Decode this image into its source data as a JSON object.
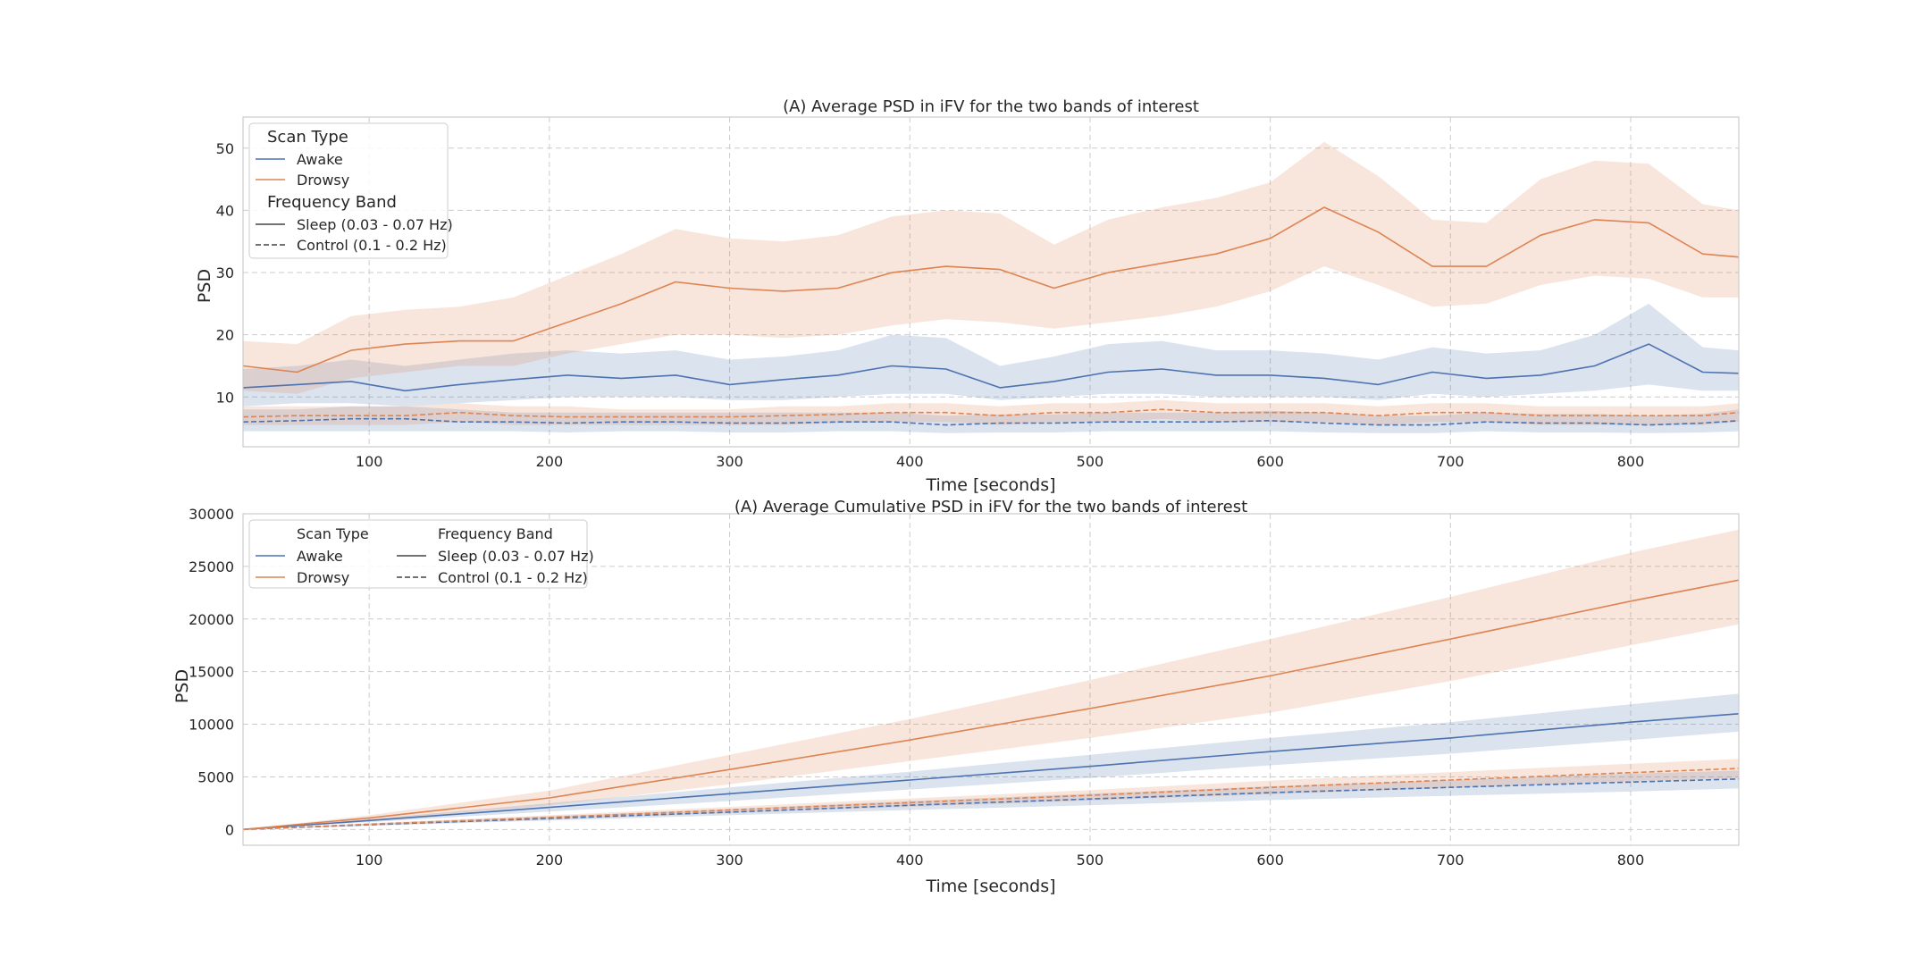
{
  "colors": {
    "awake": "#4c72b0",
    "drowsy": "#dd8452",
    "grid": "#cccccc",
    "frame": "#cccccc",
    "text": "#262626"
  },
  "chart_data": [
    {
      "type": "line",
      "title": "(A) Average PSD in iFV for the two bands of interest",
      "xlabel": "Time [seconds]",
      "ylabel": "PSD",
      "xlim": [
        30,
        860
      ],
      "ylim": [
        2,
        55
      ],
      "xticks": [
        100,
        200,
        300,
        400,
        500,
        600,
        700,
        800
      ],
      "yticks": [
        10,
        20,
        30,
        40,
        50
      ],
      "grid": true,
      "legend_placement": "top-left",
      "legend_layout": "stacked",
      "legend": {
        "scan_title": "Scan Type",
        "scan_items": [
          "Awake",
          "Drowsy"
        ],
        "band_title": "Frequency Band",
        "band_items": [
          "Sleep (0.03 - 0.07 Hz)",
          "Control (0.1 - 0.2 Hz)"
        ]
      },
      "x": [
        30,
        60,
        90,
        120,
        150,
        180,
        210,
        240,
        270,
        300,
        330,
        360,
        390,
        420,
        450,
        480,
        510,
        540,
        570,
        600,
        630,
        660,
        690,
        720,
        750,
        780,
        810,
        840,
        860
      ],
      "series": [
        {
          "name": "Awake",
          "band": "Sleep (0.03 - 0.07 Hz)",
          "style": "solid",
          "values": [
            11.5,
            12.0,
            12.5,
            11.0,
            12.0,
            12.8,
            13.5,
            13.0,
            13.5,
            12.0,
            12.8,
            13.5,
            15.0,
            14.5,
            11.5,
            12.5,
            14.0,
            14.5,
            13.5,
            13.5,
            13.0,
            12.0,
            14.0,
            13.0,
            13.5,
            15.0,
            18.5,
            14.0,
            13.8
          ],
          "lower": [
            8.5,
            9.0,
            9.0,
            8.5,
            9.0,
            9.5,
            10.0,
            10.0,
            10.0,
            9.5,
            9.5,
            10.0,
            10.5,
            10.5,
            9.5,
            10.0,
            10.5,
            10.5,
            10.0,
            10.0,
            10.0,
            9.5,
            10.5,
            10.0,
            10.5,
            11.0,
            12.0,
            11.0,
            11.0
          ],
          "upper": [
            14.5,
            15.0,
            16.0,
            15.0,
            16.0,
            17.0,
            17.5,
            17.0,
            17.5,
            16.0,
            16.5,
            17.5,
            20.0,
            19.5,
            15.0,
            16.5,
            18.5,
            19.0,
            17.5,
            17.5,
            17.0,
            16.0,
            18.0,
            17.0,
            17.5,
            20.0,
            25.0,
            18.0,
            17.5
          ]
        },
        {
          "name": "Drowsy",
          "band": "Sleep (0.03 - 0.07 Hz)",
          "style": "solid",
          "values": [
            15.0,
            14.0,
            17.5,
            18.5,
            19.0,
            19.0,
            22.0,
            25.0,
            28.5,
            27.5,
            27.0,
            27.5,
            30.0,
            31.0,
            30.5,
            27.5,
            30.0,
            31.5,
            33.0,
            35.5,
            40.5,
            36.5,
            31.0,
            31.0,
            36.0,
            38.5,
            38.0,
            33.0,
            32.5
          ],
          "lower": [
            11.0,
            10.5,
            13.0,
            14.0,
            15.0,
            15.0,
            17.0,
            18.5,
            20.0,
            20.0,
            19.5,
            20.0,
            21.5,
            22.5,
            22.0,
            21.0,
            22.0,
            23.0,
            24.5,
            27.0,
            31.0,
            28.0,
            24.5,
            25.0,
            28.0,
            29.5,
            29.0,
            26.0,
            26.0
          ],
          "upper": [
            19.0,
            18.5,
            23.0,
            24.0,
            24.5,
            26.0,
            29.5,
            33.0,
            37.0,
            35.5,
            35.0,
            36.0,
            39.0,
            40.0,
            39.5,
            34.5,
            38.5,
            40.5,
            42.0,
            44.5,
            51.0,
            45.5,
            38.5,
            38.0,
            45.0,
            48.0,
            47.5,
            41.0,
            40.0
          ]
        },
        {
          "name": "Awake",
          "band": "Control (0.1 - 0.2 Hz)",
          "style": "dashed",
          "values": [
            6.0,
            6.2,
            6.5,
            6.5,
            6.0,
            6.0,
            5.8,
            6.0,
            6.0,
            5.8,
            5.8,
            6.0,
            6.0,
            5.5,
            5.8,
            5.8,
            6.0,
            6.0,
            6.0,
            6.2,
            5.8,
            5.5,
            5.5,
            6.0,
            5.8,
            5.8,
            5.5,
            5.8,
            6.2
          ],
          "lower": [
            4.5,
            4.5,
            4.5,
            4.5,
            4.5,
            4.5,
            4.3,
            4.5,
            4.5,
            4.3,
            4.3,
            4.5,
            4.5,
            4.2,
            4.3,
            4.3,
            4.5,
            4.5,
            4.5,
            4.5,
            4.3,
            4.2,
            4.2,
            4.5,
            4.3,
            4.3,
            4.2,
            4.3,
            4.5
          ],
          "upper": [
            8.0,
            8.0,
            8.5,
            8.5,
            8.0,
            7.5,
            7.5,
            7.5,
            7.5,
            7.5,
            7.5,
            7.5,
            7.5,
            7.0,
            7.2,
            7.2,
            7.5,
            7.5,
            7.5,
            7.8,
            7.5,
            7.0,
            7.0,
            7.5,
            7.3,
            7.3,
            7.0,
            7.3,
            8.0
          ]
        },
        {
          "name": "Drowsy",
          "band": "Control (0.1 - 0.2 Hz)",
          "style": "dashed",
          "values": [
            6.8,
            7.0,
            7.0,
            7.0,
            7.5,
            7.0,
            6.8,
            6.8,
            6.8,
            6.8,
            7.0,
            7.2,
            7.5,
            7.5,
            7.0,
            7.5,
            7.5,
            8.0,
            7.5,
            7.5,
            7.5,
            7.0,
            7.5,
            7.5,
            7.0,
            7.0,
            7.0,
            7.0,
            7.5
          ],
          "lower": [
            5.5,
            5.5,
            5.5,
            5.5,
            6.0,
            5.5,
            5.5,
            5.5,
            5.5,
            5.5,
            5.5,
            5.8,
            6.0,
            6.0,
            5.5,
            6.0,
            6.0,
            6.5,
            6.0,
            6.0,
            6.0,
            5.5,
            6.0,
            6.0,
            5.5,
            5.5,
            5.5,
            5.5,
            6.0
          ],
          "upper": [
            8.5,
            8.5,
            8.5,
            8.5,
            9.0,
            8.5,
            8.5,
            8.0,
            8.0,
            8.0,
            8.5,
            8.5,
            9.0,
            9.0,
            8.5,
            9.0,
            9.0,
            9.5,
            9.0,
            9.0,
            9.0,
            8.5,
            9.0,
            9.0,
            8.5,
            8.5,
            8.5,
            8.5,
            9.0
          ]
        }
      ]
    },
    {
      "type": "line",
      "title": "(A) Average Cumulative PSD in iFV for the two bands of interest",
      "xlabel": "Time [seconds]",
      "ylabel": "PSD",
      "xlim": [
        30,
        860
      ],
      "ylim": [
        -1500,
        30000
      ],
      "xticks": [
        100,
        200,
        300,
        400,
        500,
        600,
        700,
        800
      ],
      "yticks": [
        0,
        5000,
        10000,
        15000,
        20000,
        25000,
        30000
      ],
      "grid": true,
      "legend_placement": "top-left",
      "legend_layout": "two-column",
      "legend": {
        "scan_title": "Scan Type",
        "scan_items": [
          "Awake",
          "Drowsy"
        ],
        "band_title": "Frequency Band",
        "band_items": [
          "Sleep (0.03 - 0.07 Hz)",
          "Control (0.1 - 0.2 Hz)"
        ]
      },
      "x": [
        30,
        100,
        200,
        300,
        400,
        500,
        600,
        700,
        800,
        860
      ],
      "series": [
        {
          "name": "Awake",
          "band": "Sleep (0.03 - 0.07 Hz)",
          "style": "solid",
          "values": [
            0,
            850,
            2100,
            3400,
            4700,
            6000,
            7400,
            8700,
            10200,
            11000
          ],
          "lower": [
            0,
            700,
            1700,
            2700,
            3800,
            4900,
            6100,
            7200,
            8500,
            9300
          ],
          "upper": [
            0,
            1000,
            2500,
            4000,
            5500,
            7100,
            8700,
            10200,
            11900,
            12900
          ]
        },
        {
          "name": "Drowsy",
          "band": "Sleep (0.03 - 0.07 Hz)",
          "style": "solid",
          "values": [
            0,
            1100,
            3000,
            5700,
            8500,
            11500,
            14600,
            18100,
            21700,
            23700
          ],
          "lower": [
            0,
            850,
            2300,
            4300,
            6500,
            8700,
            11100,
            14100,
            17500,
            19500
          ],
          "upper": [
            0,
            1350,
            3700,
            7100,
            10500,
            14200,
            18100,
            22100,
            26300,
            28500
          ]
        },
        {
          "name": "Awake",
          "band": "Control (0.1 - 0.2 Hz)",
          "style": "dashed",
          "values": [
            0,
            450,
            1050,
            1650,
            2300,
            2900,
            3500,
            4000,
            4500,
            4800
          ],
          "lower": [
            0,
            350,
            850,
            1350,
            1850,
            2300,
            2800,
            3200,
            3600,
            3900
          ],
          "upper": [
            0,
            550,
            1250,
            1950,
            2700,
            3400,
            4100,
            4700,
            5300,
            5600
          ]
        },
        {
          "name": "Drowsy",
          "band": "Control (0.1 - 0.2 Hz)",
          "style": "dashed",
          "values": [
            0,
            500,
            1150,
            1850,
            2550,
            3250,
            4000,
            4700,
            5400,
            5800
          ],
          "lower": [
            0,
            400,
            950,
            1550,
            2150,
            2750,
            3350,
            3950,
            4550,
            4900
          ],
          "upper": [
            0,
            600,
            1350,
            2150,
            2950,
            3750,
            4650,
            5450,
            6250,
            6700
          ]
        }
      ]
    }
  ]
}
